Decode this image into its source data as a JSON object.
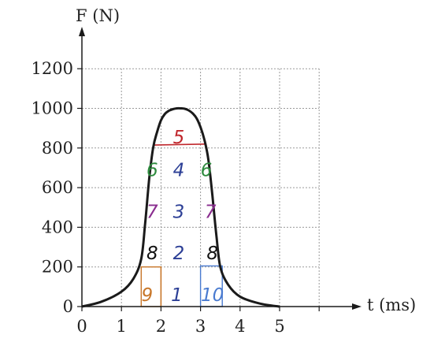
{
  "chart_data": {
    "type": "line",
    "title": "",
    "xlabel": "t (ms)",
    "ylabel": "F (N)",
    "xlim": [
      0,
      6
    ],
    "ylim": [
      0,
      1200
    ],
    "x_ticks": [
      0,
      1,
      2,
      3,
      4,
      5
    ],
    "x_tick_labels": [
      "0",
      "1",
      "2",
      "3",
      "4",
      "5"
    ],
    "y_ticks": [
      0,
      200,
      400,
      600,
      800,
      1000,
      1200
    ],
    "y_tick_labels": [
      "0",
      "200",
      "400",
      "600",
      "800",
      "1000",
      "1200"
    ],
    "grid": true,
    "series": [
      {
        "x": [
          0,
          0.5,
          1.0,
          1.3,
          1.5,
          1.6,
          1.7,
          1.8,
          1.9,
          2.0,
          2.1,
          2.2,
          2.3,
          2.4,
          2.5,
          2.6,
          2.7,
          2.8,
          2.9,
          3.0,
          3.1,
          3.2,
          3.3,
          3.4,
          3.5,
          3.7,
          4.0,
          4.5,
          5.0
        ],
        "y": [
          0,
          25,
          75,
          140,
          240,
          420,
          640,
          800,
          880,
          940,
          972,
          988,
          996,
          1000,
          1000,
          998,
          990,
          975,
          950,
          905,
          840,
          740,
          560,
          360,
          200,
          110,
          50,
          15,
          0
        ]
      }
    ],
    "annotations": [
      {
        "text": "5",
        "x": 2.45,
        "y": 855,
        "color": "#c0282d"
      },
      {
        "text": "6",
        "x": 1.78,
        "y": 690,
        "color": "#2e8b3e"
      },
      {
        "text": "4",
        "x": 2.45,
        "y": 690,
        "color": "#2c3f96"
      },
      {
        "text": "6",
        "x": 3.15,
        "y": 690,
        "color": "#2e8b3e"
      },
      {
        "text": "7",
        "x": 1.78,
        "y": 480,
        "color": "#8a2d8f"
      },
      {
        "text": "3",
        "x": 2.45,
        "y": 480,
        "color": "#2c3f96"
      },
      {
        "text": "7",
        "x": 3.25,
        "y": 480,
        "color": "#8a2d8f"
      },
      {
        "text": "8",
        "x": 1.78,
        "y": 270,
        "color": "#111111"
      },
      {
        "text": "2",
        "x": 2.45,
        "y": 270,
        "color": "#2c3f96"
      },
      {
        "text": "8",
        "x": 3.3,
        "y": 270,
        "color": "#111111"
      },
      {
        "text": "9",
        "x": 1.65,
        "y": 60,
        "color": "#c8772a"
      },
      {
        "text": "1",
        "x": 2.4,
        "y": 60,
        "color": "#2c3f96"
      },
      {
        "text": "10",
        "x": 3.3,
        "y": 60,
        "color": "#4a7bd0"
      }
    ],
    "colors": {
      "curve": "#1a1a1a",
      "axes": "#1a1a1a",
      "grid": "#9a9a9a",
      "line_5": "#c0282d",
      "box_9": "#c8772a",
      "box_10": "#4a7bd0"
    }
  }
}
